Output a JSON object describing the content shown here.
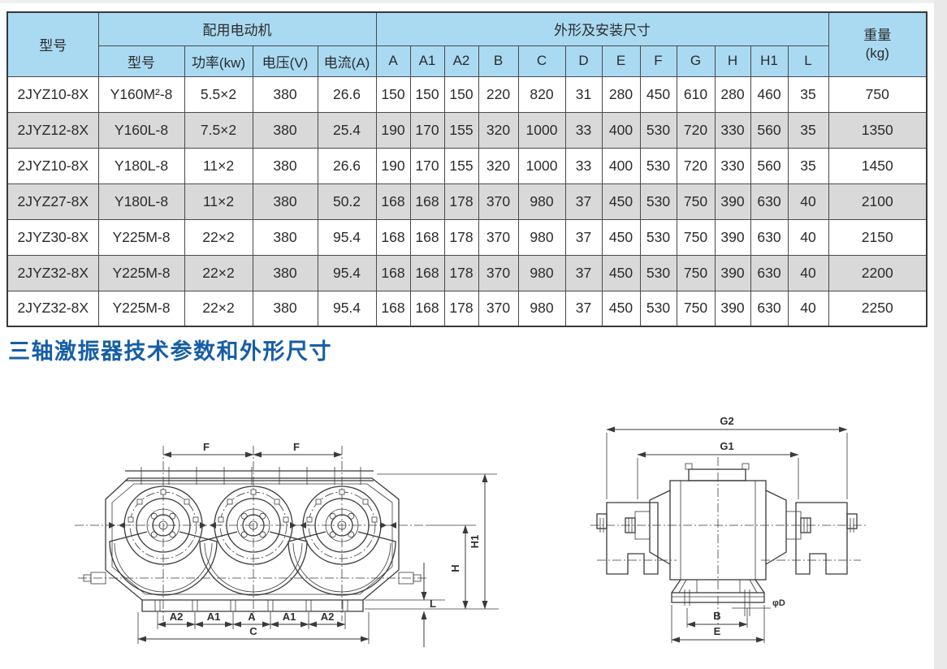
{
  "section_title": "三轴激振器技术参数和外形尺寸",
  "title_color": "#155ea6",
  "table": {
    "colors": {
      "header_bg": "#a9daf2",
      "alt_row_bg": "#d9d9d9",
      "border": "#4a4a4a",
      "text": "#2b2b2b"
    },
    "header": {
      "col_model": "型号",
      "group_motor": "配用电动机",
      "motor_subcols": [
        "型号",
        "功率(kw)",
        "电压(V)",
        "电流(A)"
      ],
      "group_dims": "外形及安装尺寸",
      "dim_subcols": [
        "A",
        "A1",
        "A2",
        "B",
        "C",
        "D",
        "E",
        "F",
        "G",
        "H",
        "H1",
        "L"
      ],
      "weight_line1": "重量",
      "weight_line2": "(kg)"
    },
    "rows": [
      [
        "2JYZ10-8X",
        "Y160M²-8",
        "5.5×2",
        "380",
        "26.6",
        "150",
        "150",
        "150",
        "220",
        "820",
        "31",
        "280",
        "450",
        "610",
        "280",
        "460",
        "35",
        "750"
      ],
      [
        "2JYZ12-8X",
        "Y160L-8",
        "7.5×2",
        "380",
        "25.4",
        "190",
        "170",
        "155",
        "320",
        "1000",
        "33",
        "400",
        "530",
        "720",
        "330",
        "560",
        "35",
        "1350"
      ],
      [
        "2JYZ10-8X",
        "Y180L-8",
        "11×2",
        "380",
        "26.6",
        "190",
        "170",
        "155",
        "320",
        "1000",
        "33",
        "400",
        "530",
        "720",
        "330",
        "560",
        "35",
        "1450"
      ],
      [
        "2JYZ27-8X",
        "Y180L-8",
        "11×2",
        "380",
        "50.2",
        "168",
        "168",
        "178",
        "370",
        "980",
        "37",
        "450",
        "530",
        "750",
        "390",
        "630",
        "40",
        "2100"
      ],
      [
        "2JYZ30-8X",
        "Y225M-8",
        "22×2",
        "380",
        "95.4",
        "168",
        "168",
        "178",
        "370",
        "980",
        "37",
        "450",
        "530",
        "750",
        "390",
        "630",
        "40",
        "2150"
      ],
      [
        "2JYZ32-8X",
        "Y225M-8",
        "22×2",
        "380",
        "95.4",
        "168",
        "168",
        "178",
        "370",
        "980",
        "37",
        "450",
        "530",
        "750",
        "390",
        "630",
        "40",
        "2200"
      ],
      [
        "2JYZ32-8X",
        "Y225M-8",
        "22×2",
        "380",
        "95.4",
        "168",
        "168",
        "178",
        "370",
        "980",
        "37",
        "450",
        "530",
        "750",
        "390",
        "630",
        "40",
        "2250"
      ]
    ]
  },
  "front_view": {
    "labels": {
      "f1": "F",
      "f2": "F",
      "h1": "H1",
      "h": "H",
      "l": "L",
      "a_row": [
        "A2",
        "A1",
        "A",
        "A1",
        "A2"
      ],
      "c": "C"
    }
  },
  "side_view": {
    "labels": {
      "g2": "G2",
      "g1": "G1",
      "b": "B",
      "e": "E",
      "d": "φD"
    }
  }
}
